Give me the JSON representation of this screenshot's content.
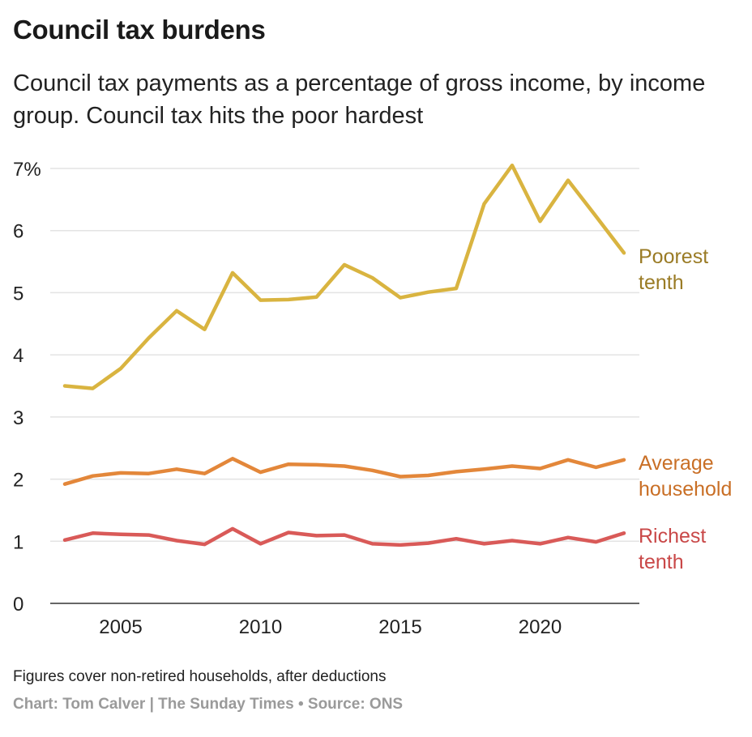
{
  "title": "Council tax burdens",
  "subtitle": "Council tax payments as a percentage of gross income, by income group. Council tax hits the poor hardest",
  "note": "Figures cover non-retired households, after deductions",
  "credit": "Chart: Tom Calver | The Sunday Times • Source: ONS",
  "chart_data": {
    "type": "line",
    "title": "Council tax burdens",
    "xlabel": "",
    "ylabel": "",
    "xlim": [
      2003,
      2023
    ],
    "ylim": [
      0,
      7
    ],
    "grid": true,
    "x": [
      2003,
      2004,
      2005,
      2006,
      2007,
      2008,
      2009,
      2010,
      2011,
      2012,
      2013,
      2014,
      2015,
      2016,
      2017,
      2018,
      2019,
      2020,
      2021,
      2022,
      2023
    ],
    "x_ticks": [
      {
        "value": 2005,
        "label": "2005"
      },
      {
        "value": 2010,
        "label": "2010"
      },
      {
        "value": 2015,
        "label": "2015"
      },
      {
        "value": 2020,
        "label": "2020"
      }
    ],
    "y_ticks": [
      {
        "value": 0,
        "label": "0"
      },
      {
        "value": 1,
        "label": "1"
      },
      {
        "value": 2,
        "label": "2"
      },
      {
        "value": 3,
        "label": "3"
      },
      {
        "value": 4,
        "label": "4"
      },
      {
        "value": 5,
        "label": "5"
      },
      {
        "value": 6,
        "label": "6"
      },
      {
        "value": 7,
        "label": "7%"
      }
    ],
    "series": [
      {
        "name": "Poorest tenth",
        "label_lines": [
          "Poorest",
          "tenth"
        ],
        "color": "#d9b440",
        "label_color": "#9a7b25",
        "values": [
          3.5,
          3.46,
          3.78,
          4.27,
          4.71,
          4.41,
          5.32,
          4.88,
          4.89,
          4.93,
          5.45,
          5.24,
          4.92,
          5.01,
          5.07,
          6.43,
          7.05,
          6.15,
          6.81,
          6.23,
          5.64
        ]
      },
      {
        "name": "Average household",
        "label_lines": [
          "Average",
          "household"
        ],
        "color": "#e3873a",
        "label_color": "#c96f26",
        "values": [
          1.92,
          2.05,
          2.1,
          2.09,
          2.16,
          2.09,
          2.33,
          2.11,
          2.24,
          2.23,
          2.21,
          2.14,
          2.04,
          2.06,
          2.12,
          2.16,
          2.21,
          2.17,
          2.31,
          2.19,
          2.31
        ]
      },
      {
        "name": "Richest tenth",
        "label_lines": [
          "Richest",
          "tenth"
        ],
        "color": "#d95a58",
        "label_color": "#c94848",
        "values": [
          1.02,
          1.13,
          1.11,
          1.1,
          1.01,
          0.95,
          1.2,
          0.96,
          1.14,
          1.09,
          1.1,
          0.96,
          0.94,
          0.97,
          1.04,
          0.96,
          1.01,
          0.96,
          1.06,
          0.99,
          1.13
        ]
      }
    ]
  }
}
